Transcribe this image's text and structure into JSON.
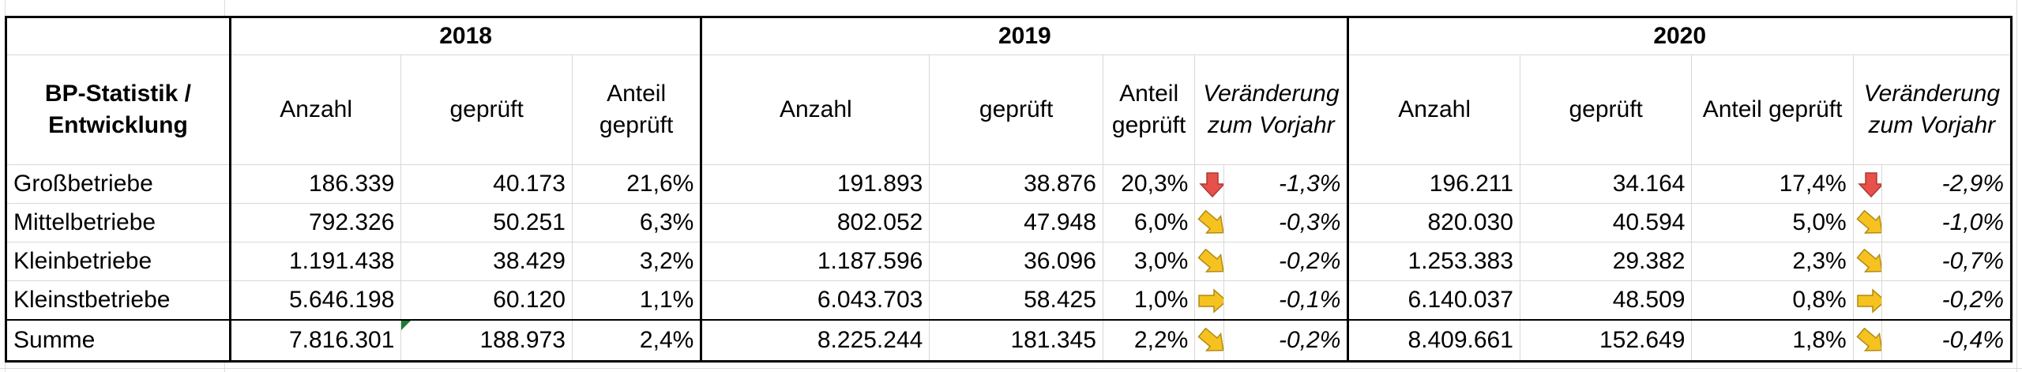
{
  "years": [
    "2018",
    "2019",
    "2020"
  ],
  "header": {
    "stat_label": "BP-Statistik / Entwicklung",
    "anzahl": "Anzahl",
    "geprueft": "geprüft",
    "anteil": "Anteil geprüft",
    "veraenderung": "Veränderung zum Vorjahr"
  },
  "rows": [
    {
      "label": "Großbetriebe",
      "y2018": {
        "anzahl": "186.339",
        "geprueft": "40.173",
        "anteil": "21,6%"
      },
      "y2019": {
        "anzahl": "191.893",
        "geprueft": "38.876",
        "anteil": "20,3%",
        "icon": "arrow-down-icon",
        "change": "-1,3%"
      },
      "y2020": {
        "anzahl": "196.211",
        "geprueft": "34.164",
        "anteil": "17,4%",
        "icon": "arrow-down-icon",
        "change": "-2,9%"
      }
    },
    {
      "label": "Mittelbetriebe",
      "y2018": {
        "anzahl": "792.326",
        "geprueft": "50.251",
        "anteil": "6,3%"
      },
      "y2019": {
        "anzahl": "802.052",
        "geprueft": "47.948",
        "anteil": "6,0%",
        "icon": "arrow-down-right-icon",
        "change": "-0,3%"
      },
      "y2020": {
        "anzahl": "820.030",
        "geprueft": "40.594",
        "anteil": "5,0%",
        "icon": "arrow-down-right-icon",
        "change": "-1,0%"
      }
    },
    {
      "label": "Kleinbetriebe",
      "y2018": {
        "anzahl": "1.191.438",
        "geprueft": "38.429",
        "anteil": "3,2%"
      },
      "y2019": {
        "anzahl": "1.187.596",
        "geprueft": "36.096",
        "anteil": "3,0%",
        "icon": "arrow-down-right-icon",
        "change": "-0,2%"
      },
      "y2020": {
        "anzahl": "1.253.383",
        "geprueft": "29.382",
        "anteil": "2,3%",
        "icon": "arrow-down-right-icon",
        "change": "-0,7%"
      }
    },
    {
      "label": "Kleinstbetriebe",
      "y2018": {
        "anzahl": "5.646.198",
        "geprueft": "60.120",
        "anteil": "1,1%"
      },
      "y2019": {
        "anzahl": "6.043.703",
        "geprueft": "58.425",
        "anteil": "1,0%",
        "icon": "arrow-right-icon",
        "change": "-0,1%"
      },
      "y2020": {
        "anzahl": "6.140.037",
        "geprueft": "48.509",
        "anteil": "0,8%",
        "icon": "arrow-right-icon",
        "change": "-0,2%"
      }
    }
  ],
  "summe": {
    "label": "Summe",
    "y2018": {
      "anzahl": "7.816.301",
      "geprueft": "188.973",
      "anteil": "2,4%"
    },
    "y2019": {
      "anzahl": "8.225.244",
      "geprueft": "181.345",
      "anteil": "2,2%",
      "icon": "arrow-down-right-icon",
      "change": "-0,2%"
    },
    "y2020": {
      "anzahl": "8.409.661",
      "geprueft": "152.649",
      "anteil": "1,8%",
      "icon": "arrow-down-right-icon",
      "change": "-0,4%"
    }
  },
  "colors": {
    "arrow_down": "#e8504a",
    "arrow_yellow": "#f5c220",
    "border": "#000000",
    "gridline": "#d8d8d8"
  }
}
